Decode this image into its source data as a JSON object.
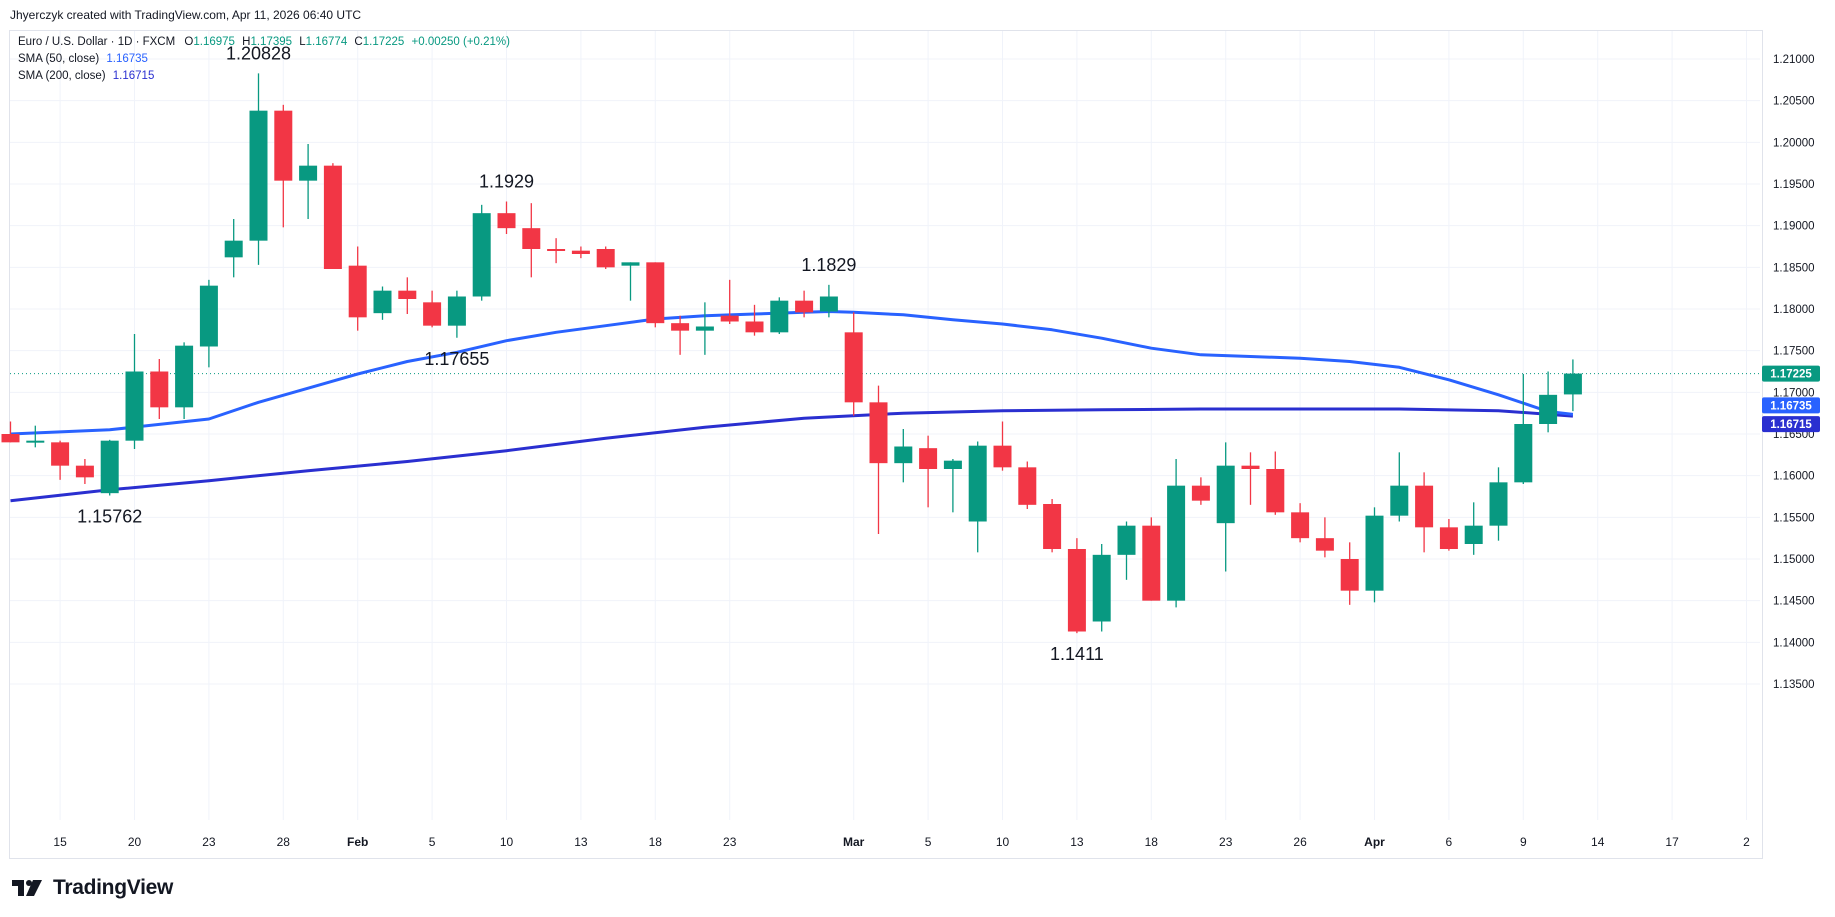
{
  "header": {
    "text": "Jhyerczyk created with TradingView.com, Apr 11, 2026 06:40 UTC"
  },
  "legend": {
    "symbol": "Euro / U.S. Dollar · 1D · FXCM",
    "o_label": "O",
    "o_value": "1.16975",
    "h_label": "H",
    "h_value": "1.17395",
    "l_label": "L",
    "l_value": "1.16774",
    "c_label": "C",
    "c_value": "1.17225",
    "change": "+0.00250 (+0.21%)",
    "sma50_label": "SMA (50, close)",
    "sma50_value": "1.16735",
    "sma200_label": "SMA (200, close)",
    "sma200_value": "1.16715"
  },
  "footer": {
    "brand": "TradingView"
  },
  "colors": {
    "up": "#089981",
    "down": "#f23645",
    "sma50": "#2962ff",
    "sma200": "#2a2fd0",
    "last": "#089981"
  },
  "chart_data": {
    "type": "candlestick",
    "symbol": "EUR/USD",
    "timeframe": "1D",
    "ylim": [
      1.132,
      1.212
    ],
    "y_ticks": [
      "1.21000",
      "1.20500",
      "1.20000",
      "1.19500",
      "1.19000",
      "1.18500",
      "1.18000",
      "1.17500",
      "1.17000",
      "1.16500",
      "1.16000",
      "1.15500",
      "1.15000",
      "1.14500",
      "1.14000",
      "1.13500"
    ],
    "x_ticks": [
      {
        "label": "15",
        "index": 2
      },
      {
        "label": "20",
        "index": 5
      },
      {
        "label": "23",
        "index": 8
      },
      {
        "label": "28",
        "index": 11
      },
      {
        "label": "Feb",
        "index": 14
      },
      {
        "label": "5",
        "index": 17
      },
      {
        "label": "10",
        "index": 20
      },
      {
        "label": "13",
        "index": 23
      },
      {
        "label": "18",
        "index": 26
      },
      {
        "label": "23",
        "index": 29
      },
      {
        "label": "Mar",
        "index": 34
      },
      {
        "label": "5",
        "index": 37
      },
      {
        "label": "10",
        "index": 40
      },
      {
        "label": "13",
        "index": 43
      },
      {
        "label": "18",
        "index": 46
      },
      {
        "label": "23",
        "index": 49
      },
      {
        "label": "26",
        "index": 52
      },
      {
        "label": "Apr",
        "index": 55
      },
      {
        "label": "6",
        "index": 58
      },
      {
        "label": "9",
        "index": 61
      },
      {
        "label": "14",
        "index": 64
      },
      {
        "label": "17",
        "index": 67
      },
      {
        "label": "2",
        "index": 70
      }
    ],
    "candles": [
      {
        "o": 1.165,
        "h": 1.1665,
        "l": 1.164,
        "c": 1.164
      },
      {
        "o": 1.164,
        "h": 1.166,
        "l": 1.1634,
        "c": 1.1642
      },
      {
        "o": 1.164,
        "h": 1.1642,
        "l": 1.1595,
        "c": 1.1612
      },
      {
        "o": 1.1612,
        "h": 1.162,
        "l": 1.159,
        "c": 1.1598
      },
      {
        "o": 1.1579,
        "h": 1.1643,
        "l": 1.15762,
        "c": 1.1642
      },
      {
        "o": 1.1642,
        "h": 1.177,
        "l": 1.1632,
        "c": 1.1725
      },
      {
        "o": 1.1725,
        "h": 1.174,
        "l": 1.1668,
        "c": 1.1682
      },
      {
        "o": 1.1682,
        "h": 1.176,
        "l": 1.1668,
        "c": 1.1756
      },
      {
        "o": 1.1755,
        "h": 1.1835,
        "l": 1.173,
        "c": 1.1828
      },
      {
        "o": 1.1862,
        "h": 1.1908,
        "l": 1.1838,
        "c": 1.1882
      },
      {
        "o": 1.1882,
        "h": 1.20828,
        "l": 1.1853,
        "c": 1.2038
      },
      {
        "o": 1.2038,
        "h": 1.2045,
        "l": 1.1898,
        "c": 1.1954
      },
      {
        "o": 1.1954,
        "h": 1.1998,
        "l": 1.1908,
        "c": 1.1972
      },
      {
        "o": 1.1972,
        "h": 1.1975,
        "l": 1.1848,
        "c": 1.1848
      },
      {
        "o": 1.1852,
        "h": 1.1875,
        "l": 1.1774,
        "c": 1.179
      },
      {
        "o": 1.1795,
        "h": 1.1827,
        "l": 1.1787,
        "c": 1.1822
      },
      {
        "o": 1.1822,
        "h": 1.1838,
        "l": 1.1794,
        "c": 1.1812
      },
      {
        "o": 1.1808,
        "h": 1.1822,
        "l": 1.1778,
        "c": 1.178
      },
      {
        "o": 1.178,
        "h": 1.1822,
        "l": 1.17655,
        "c": 1.1815
      },
      {
        "o": 1.1815,
        "h": 1.1925,
        "l": 1.181,
        "c": 1.1915
      },
      {
        "o": 1.1915,
        "h": 1.1929,
        "l": 1.189,
        "c": 1.1897
      },
      {
        "o": 1.1897,
        "h": 1.1927,
        "l": 1.1838,
        "c": 1.1872
      },
      {
        "o": 1.1872,
        "h": 1.1885,
        "l": 1.1855,
        "c": 1.1871
      },
      {
        "o": 1.187,
        "h": 1.1875,
        "l": 1.1861,
        "c": 1.1866
      },
      {
        "o": 1.1872,
        "h": 1.1875,
        "l": 1.1848,
        "c": 1.185
      },
      {
        "o": 1.1852,
        "h": 1.1856,
        "l": 1.181,
        "c": 1.1856
      },
      {
        "o": 1.1856,
        "h": 1.1856,
        "l": 1.1778,
        "c": 1.1783
      },
      {
        "o": 1.1783,
        "h": 1.1792,
        "l": 1.1745,
        "c": 1.1774
      },
      {
        "o": 1.1774,
        "h": 1.1808,
        "l": 1.1745,
        "c": 1.1779
      },
      {
        "o": 1.1792,
        "h": 1.1835,
        "l": 1.1782,
        "c": 1.1785
      },
      {
        "o": 1.1785,
        "h": 1.1805,
        "l": 1.1768,
        "c": 1.1772
      },
      {
        "o": 1.1772,
        "h": 1.1814,
        "l": 1.177,
        "c": 1.181
      },
      {
        "o": 1.181,
        "h": 1.1822,
        "l": 1.179,
        "c": 1.1796
      },
      {
        "o": 1.1797,
        "h": 1.1829,
        "l": 1.179,
        "c": 1.1815
      },
      {
        "o": 1.1772,
        "h": 1.1796,
        "l": 1.1672,
        "c": 1.1688
      },
      {
        "o": 1.1688,
        "h": 1.1708,
        "l": 1.153,
        "c": 1.1615
      },
      {
        "o": 1.1615,
        "h": 1.1656,
        "l": 1.1592,
        "c": 1.1635
      },
      {
        "o": 1.1633,
        "h": 1.1648,
        "l": 1.1562,
        "c": 1.1608
      },
      {
        "o": 1.1608,
        "h": 1.162,
        "l": 1.1556,
        "c": 1.1618
      },
      {
        "o": 1.1545,
        "h": 1.1641,
        "l": 1.1508,
        "c": 1.1636
      },
      {
        "o": 1.1636,
        "h": 1.1665,
        "l": 1.1606,
        "c": 1.161
      },
      {
        "o": 1.161,
        "h": 1.1617,
        "l": 1.156,
        "c": 1.1565
      },
      {
        "o": 1.1566,
        "h": 1.1572,
        "l": 1.1508,
        "c": 1.1512
      },
      {
        "o": 1.1512,
        "h": 1.1525,
        "l": 1.1411,
        "c": 1.1413
      },
      {
        "o": 1.1425,
        "h": 1.1518,
        "l": 1.1413,
        "c": 1.1505
      },
      {
        "o": 1.1505,
        "h": 1.1545,
        "l": 1.1475,
        "c": 1.154
      },
      {
        "o": 1.154,
        "h": 1.155,
        "l": 1.145,
        "c": 1.145
      },
      {
        "o": 1.145,
        "h": 1.162,
        "l": 1.1442,
        "c": 1.1588
      },
      {
        "o": 1.1588,
        "h": 1.1598,
        "l": 1.1565,
        "c": 1.157
      },
      {
        "o": 1.1543,
        "h": 1.164,
        "l": 1.1485,
        "c": 1.1612
      },
      {
        "o": 1.1612,
        "h": 1.1628,
        "l": 1.1565,
        "c": 1.1608
      },
      {
        "o": 1.1608,
        "h": 1.1629,
        "l": 1.1553,
        "c": 1.1556
      },
      {
        "o": 1.1556,
        "h": 1.1567,
        "l": 1.152,
        "c": 1.1525
      },
      {
        "o": 1.1525,
        "h": 1.155,
        "l": 1.1502,
        "c": 1.151
      },
      {
        "o": 1.15,
        "h": 1.152,
        "l": 1.1445,
        "c": 1.1462
      },
      {
        "o": 1.1462,
        "h": 1.1562,
        "l": 1.1448,
        "c": 1.1552
      },
      {
        "o": 1.1552,
        "h": 1.1628,
        "l": 1.1545,
        "c": 1.1588
      },
      {
        "o": 1.1588,
        "h": 1.1604,
        "l": 1.1508,
        "c": 1.1538
      },
      {
        "o": 1.1538,
        "h": 1.1548,
        "l": 1.151,
        "c": 1.1512
      },
      {
        "o": 1.1518,
        "h": 1.1568,
        "l": 1.1505,
        "c": 1.154
      },
      {
        "o": 1.154,
        "h": 1.161,
        "l": 1.1522,
        "c": 1.1592
      },
      {
        "o": 1.1592,
        "h": 1.1722,
        "l": 1.159,
        "c": 1.1662
      },
      {
        "o": 1.1662,
        "h": 1.1725,
        "l": 1.1652,
        "c": 1.1697
      },
      {
        "o": 1.16975,
        "h": 1.17395,
        "l": 1.16774,
        "c": 1.17225
      }
    ],
    "sma50": [
      [
        0,
        1.165
      ],
      [
        4,
        1.1655
      ],
      [
        8,
        1.1668
      ],
      [
        10,
        1.1688
      ],
      [
        12,
        1.1705
      ],
      [
        14,
        1.1722
      ],
      [
        16,
        1.1737
      ],
      [
        18,
        1.1748
      ],
      [
        20,
        1.1762
      ],
      [
        22,
        1.1772
      ],
      [
        24,
        1.178
      ],
      [
        26,
        1.1788
      ],
      [
        28,
        1.1792
      ],
      [
        30,
        1.1794
      ],
      [
        32,
        1.1796
      ],
      [
        33,
        1.1797
      ],
      [
        34,
        1.1796
      ],
      [
        36,
        1.1793
      ],
      [
        38,
        1.1787
      ],
      [
        40,
        1.1782
      ],
      [
        42,
        1.1775
      ],
      [
        44,
        1.1765
      ],
      [
        46,
        1.1753
      ],
      [
        48,
        1.1745
      ],
      [
        50,
        1.1743
      ],
      [
        52,
        1.1741
      ],
      [
        54,
        1.1737
      ],
      [
        56,
        1.173
      ],
      [
        58,
        1.1715
      ],
      [
        60,
        1.1697
      ],
      [
        62,
        1.1677
      ],
      [
        63,
        1.16735
      ]
    ],
    "sma200": [
      [
        0,
        1.157
      ],
      [
        4,
        1.1583
      ],
      [
        8,
        1.1594
      ],
      [
        12,
        1.1606
      ],
      [
        16,
        1.1617
      ],
      [
        20,
        1.163
      ],
      [
        24,
        1.1645
      ],
      [
        28,
        1.1658
      ],
      [
        32,
        1.1669
      ],
      [
        36,
        1.1675
      ],
      [
        40,
        1.1678
      ],
      [
        44,
        1.1679
      ],
      [
        48,
        1.168
      ],
      [
        52,
        1.168
      ],
      [
        56,
        1.168
      ],
      [
        60,
        1.1678
      ],
      [
        63,
        1.16715
      ]
    ],
    "annotations": [
      {
        "label": "1.15762",
        "index": 4,
        "price": 1.15762,
        "pos": "below"
      },
      {
        "label": "1.20828",
        "index": 10,
        "price": 1.20828,
        "pos": "above"
      },
      {
        "label": "1.17655",
        "index": 18,
        "price": 1.17655,
        "pos": "below"
      },
      {
        "label": "1.1929",
        "index": 20,
        "price": 1.1929,
        "pos": "above"
      },
      {
        "label": "1.1829",
        "index": 33,
        "price": 1.1829,
        "pos": "above"
      },
      {
        "label": "1.1411",
        "index": 43,
        "price": 1.1411,
        "pos": "below"
      }
    ],
    "last_price": {
      "label": "1.17225",
      "value": 1.17225
    },
    "price_labels": [
      {
        "label": "1.16735",
        "value": 1.16735,
        "series": "sma50"
      },
      {
        "label": "1.16715",
        "value": 1.16715,
        "series": "sma200"
      }
    ]
  }
}
